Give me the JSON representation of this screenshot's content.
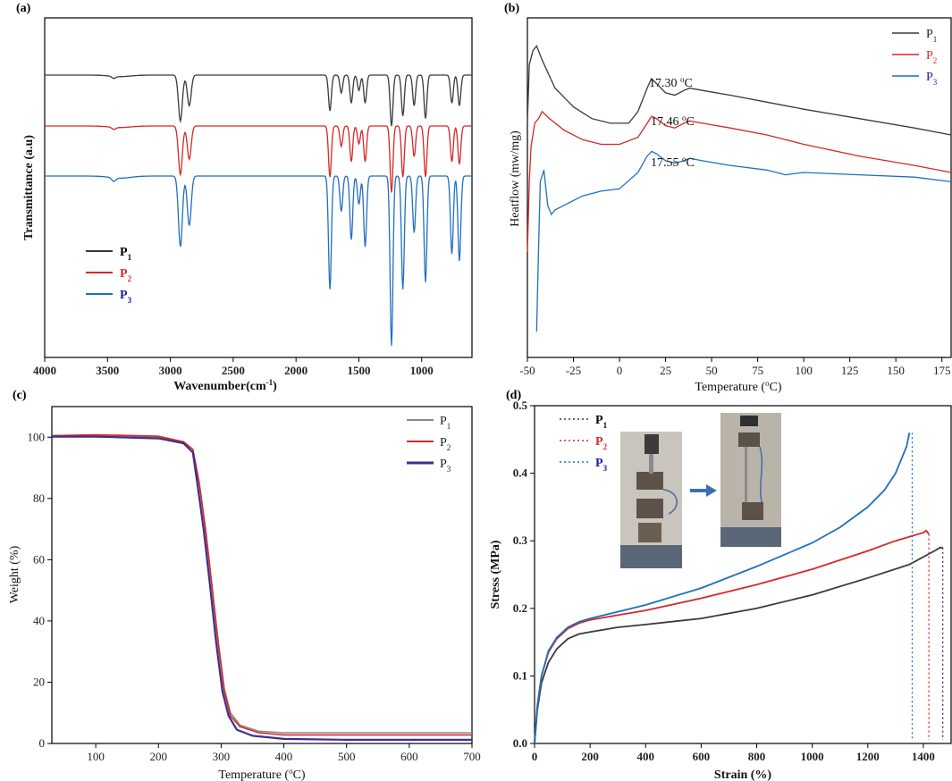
{
  "colors": {
    "P1": "#3a3a3a",
    "P2": "#d62728",
    "P3": "#1f6fc0",
    "P3_tga": "#3b2f8f",
    "P1_tga": "#8a8a8a",
    "P3_legend": "#1a1aa6"
  },
  "panels": {
    "a": {
      "label": "(a)",
      "xlabel": "Wavenumber(cm",
      "xlabel_sup": "-1",
      "xlabel_end": ")",
      "ylabel": "Transmittance (a.u)",
      "xticks": [
        "4000",
        "3500",
        "3000",
        "2500",
        "2000",
        "1500",
        "1000"
      ],
      "legend": [
        "P",
        "P",
        "P"
      ],
      "legend_sub": [
        "1",
        "2",
        "3"
      ]
    },
    "b": {
      "label": "(b)",
      "xlabel": "Temperature (",
      "xlabel_deg": "o",
      "xlabel_end": "C)",
      "ylabel": "Heatflow (mw/mg)",
      "xticks": [
        "-50",
        "-25",
        "0",
        "25",
        "50",
        "75",
        "100",
        "125",
        "150",
        "175"
      ],
      "legend": [
        "P",
        "P",
        "P"
      ],
      "legend_sub": [
        "1",
        "2",
        "3"
      ],
      "annotations": [
        "17.30",
        "17.46",
        "17.55"
      ],
      "ann_unit": "C"
    },
    "c": {
      "label": "(c)",
      "xlabel": "Temperature (",
      "xlabel_deg": "o",
      "xlabel_end": "C)",
      "ylabel": "Weight (%)",
      "xticks": [
        "100",
        "200",
        "300",
        "400",
        "500",
        "600",
        "700"
      ],
      "yticks": [
        "0",
        "20",
        "40",
        "60",
        "80",
        "100"
      ],
      "legend": [
        "P",
        "P",
        "P"
      ],
      "legend_sub": [
        "1",
        "2",
        "3"
      ]
    },
    "d": {
      "label": "(d)",
      "xlabel": "Strain (%)",
      "ylabel": "Stress (MPa)",
      "xticks": [
        "0",
        "200",
        "400",
        "600",
        "800",
        "1000",
        "1200",
        "1400"
      ],
      "yticks": [
        "0.0",
        "0.1",
        "0.2",
        "0.3",
        "0.4",
        "0.5"
      ],
      "legend": [
        "P",
        "P",
        "P"
      ],
      "legend_sub": [
        "1",
        "2",
        "3"
      ]
    }
  },
  "chart_data": [
    {
      "panel": "a",
      "type": "line",
      "xlim": [
        4000,
        600
      ],
      "series": [
        {
          "name": "P1",
          "peaks": [
            [
              3450,
              0.04
            ],
            [
              2920,
              0.9
            ],
            [
              2850,
              0.6
            ],
            [
              1730,
              0.7
            ],
            [
              1640,
              0.35
            ],
            [
              1560,
              0.55
            ],
            [
              1500,
              0.3
            ],
            [
              1450,
              0.55
            ],
            [
              1240,
              1.0
            ],
            [
              1150,
              0.8
            ],
            [
              1060,
              0.6
            ],
            [
              970,
              0.85
            ],
            [
              760,
              0.55
            ],
            [
              700,
              0.6
            ]
          ]
        },
        {
          "name": "P2",
          "peaks": [
            [
              3450,
              0.04
            ],
            [
              2920,
              0.95
            ],
            [
              2850,
              0.65
            ],
            [
              1730,
              1.0
            ],
            [
              1640,
              0.4
            ],
            [
              1560,
              0.7
            ],
            [
              1500,
              0.35
            ],
            [
              1450,
              0.7
            ],
            [
              1240,
              1.3
            ],
            [
              1150,
              1.0
            ],
            [
              1060,
              0.6
            ],
            [
              970,
              1.0
            ],
            [
              760,
              0.7
            ],
            [
              700,
              0.75
            ]
          ]
        },
        {
          "name": "P3",
          "peaks": [
            [
              3450,
              0.05
            ],
            [
              2920,
              1.0
            ],
            [
              2850,
              0.7
            ],
            [
              1730,
              1.6
            ],
            [
              1640,
              0.5
            ],
            [
              1560,
              0.9
            ],
            [
              1500,
              0.4
            ],
            [
              1450,
              1.0
            ],
            [
              1240,
              2.4
            ],
            [
              1150,
              1.6
            ],
            [
              1060,
              0.8
            ],
            [
              970,
              1.5
            ],
            [
              760,
              1.1
            ],
            [
              700,
              1.2
            ]
          ]
        }
      ]
    },
    {
      "panel": "b",
      "type": "line",
      "xlim": [
        -50,
        180
      ],
      "series": [
        {
          "name": "P1",
          "x": [
            -50,
            -49,
            -47,
            -45,
            -42,
            -35,
            -25,
            -15,
            -5,
            5,
            10,
            15,
            17.3,
            20,
            25,
            30,
            35,
            38,
            45,
            60,
            80,
            100,
            130,
            160,
            180
          ],
          "y": [
            0.55,
            0.8,
            0.86,
            0.88,
            0.82,
            0.7,
            0.62,
            0.57,
            0.55,
            0.55,
            0.6,
            0.7,
            0.74,
            0.72,
            0.68,
            0.67,
            0.69,
            0.7,
            0.69,
            0.67,
            0.64,
            0.61,
            0.57,
            0.53,
            0.5
          ]
        },
        {
          "name": "P2",
          "x": [
            -50,
            -49,
            -48,
            -46,
            -44,
            -42,
            -38,
            -30,
            -20,
            -10,
            0,
            10,
            15,
            17.46,
            20,
            25,
            30,
            35,
            38,
            45,
            60,
            80,
            100,
            130,
            160,
            180
          ],
          "y": [
            0.0,
            0.3,
            0.45,
            0.55,
            0.57,
            0.6,
            0.57,
            0.52,
            0.48,
            0.46,
            0.46,
            0.49,
            0.55,
            0.58,
            0.57,
            0.54,
            0.53,
            0.55,
            0.56,
            0.55,
            0.53,
            0.5,
            0.46,
            0.41,
            0.37,
            0.34
          ]
        },
        {
          "name": "P3",
          "x": [
            -45,
            -44,
            -43,
            -41,
            -39,
            -37,
            -35,
            -30,
            -20,
            -10,
            0,
            10,
            15,
            17.55,
            20,
            25,
            30,
            35,
            38,
            45,
            60,
            80,
            90,
            100,
            130,
            160,
            180
          ],
          "y": [
            -0.34,
            0.0,
            0.3,
            0.35,
            0.2,
            0.16,
            0.18,
            0.2,
            0.24,
            0.26,
            0.27,
            0.34,
            0.41,
            0.43,
            0.42,
            0.39,
            0.38,
            0.39,
            0.4,
            0.39,
            0.37,
            0.35,
            0.33,
            0.34,
            0.33,
            0.32,
            0.3
          ]
        }
      ]
    },
    {
      "panel": "c",
      "type": "line",
      "xlim": [
        30,
        700
      ],
      "ylim": [
        0,
        110
      ],
      "series": [
        {
          "name": "P1",
          "x": [
            30,
            100,
            200,
            240,
            255,
            265,
            275,
            285,
            295,
            305,
            315,
            330,
            360,
            400,
            500,
            600,
            700
          ],
          "y": [
            100.5,
            100.5,
            100,
            98.5,
            96,
            85,
            70,
            52,
            34,
            18,
            10,
            6,
            4,
            3.5,
            3.5,
            3.5,
            3.5
          ]
        },
        {
          "name": "P2",
          "x": [
            30,
            100,
            200,
            240,
            255,
            265,
            275,
            285,
            295,
            305,
            315,
            330,
            360,
            400,
            500,
            600,
            700
          ],
          "y": [
            100.5,
            100.8,
            100.3,
            98.5,
            96,
            85,
            70,
            52,
            33,
            17,
            9,
            5.5,
            3.5,
            2.8,
            2.8,
            2.8,
            2.8
          ]
        },
        {
          "name": "P3",
          "x": [
            30,
            100,
            200,
            240,
            255,
            262,
            272,
            282,
            292,
            302,
            312,
            325,
            350,
            400,
            500,
            600,
            700
          ],
          "y": [
            100.2,
            100.2,
            99.6,
            98,
            95,
            85,
            70,
            52,
            33,
            17,
            9,
            4.5,
            2.5,
            1.5,
            1.2,
            1.2,
            1.2
          ]
        }
      ]
    },
    {
      "panel": "d",
      "type": "line",
      "xlim": [
        0,
        1500
      ],
      "ylim": [
        0,
        0.5
      ],
      "series": [
        {
          "name": "P1",
          "x": [
            0,
            10,
            25,
            50,
            80,
            120,
            160,
            200,
            300,
            400,
            600,
            800,
            1000,
            1200,
            1350,
            1440,
            1460,
            1470
          ],
          "y": [
            0,
            0.05,
            0.09,
            0.12,
            0.14,
            0.155,
            0.162,
            0.165,
            0.172,
            0.176,
            0.185,
            0.2,
            0.22,
            0.245,
            0.265,
            0.285,
            0.29,
            0.29
          ]
        },
        {
          "name": "P2",
          "x": [
            0,
            10,
            25,
            50,
            80,
            120,
            160,
            200,
            300,
            400,
            600,
            800,
            1000,
            1200,
            1300,
            1400,
            1410,
            1420
          ],
          "y": [
            0,
            0.055,
            0.1,
            0.135,
            0.155,
            0.17,
            0.178,
            0.183,
            0.19,
            0.197,
            0.215,
            0.235,
            0.258,
            0.285,
            0.3,
            0.312,
            0.315,
            0.31
          ]
        },
        {
          "name": "P3",
          "x": [
            0,
            10,
            25,
            50,
            80,
            120,
            160,
            200,
            300,
            400,
            600,
            800,
            1000,
            1100,
            1200,
            1260,
            1300,
            1340,
            1350
          ],
          "y": [
            0,
            0.055,
            0.1,
            0.137,
            0.157,
            0.172,
            0.18,
            0.185,
            0.195,
            0.205,
            0.23,
            0.262,
            0.297,
            0.32,
            0.35,
            0.375,
            0.4,
            0.44,
            0.46
          ]
        }
      ],
      "break_lines": [
        1470,
        1420,
        1360
      ]
    }
  ]
}
